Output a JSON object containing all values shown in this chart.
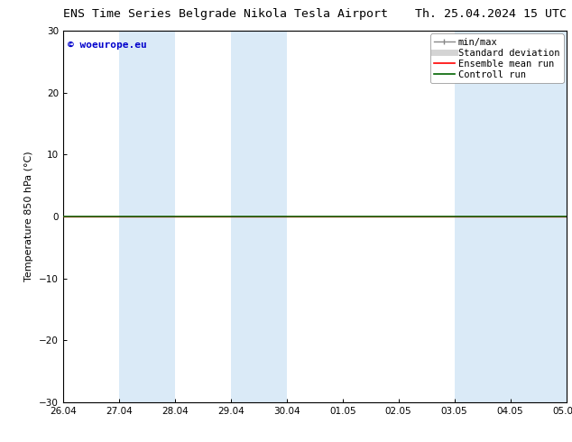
{
  "title_left": "ENS Time Series Belgrade Nikola Tesla Airport",
  "title_right": "Th. 25.04.2024 15 UTC",
  "ylabel": "Temperature 850 hPa (°C)",
  "xlabel_ticks": [
    "26.04",
    "27.04",
    "28.04",
    "29.04",
    "30.04",
    "01.05",
    "02.05",
    "03.05",
    "04.05",
    "05.05"
  ],
  "ylim": [
    -30,
    30
  ],
  "yticks": [
    -30,
    -20,
    -10,
    0,
    10,
    20,
    30
  ],
  "xlim": [
    0,
    9
  ],
  "watermark": "© woeurope.eu",
  "background_color": "#ffffff",
  "plot_bg_color": "#ffffff",
  "shaded_bands_x": [
    [
      1,
      2
    ],
    [
      3,
      4
    ],
    [
      7,
      8
    ],
    [
      8,
      9
    ]
  ],
  "shaded_color": "#daeaf7",
  "line_y_value": 0.0,
  "line_color_ensemble": "#ff0000",
  "line_color_control": "#006400",
  "legend_labels": [
    "min/max",
    "Standard deviation",
    "Ensemble mean run",
    "Controll run"
  ],
  "legend_line_colors": [
    "#888888",
    "#aaaaaa",
    "#ff0000",
    "#006400"
  ],
  "title_fontsize": 9.5,
  "tick_fontsize": 7.5,
  "ylabel_fontsize": 8,
  "legend_fontsize": 7.5,
  "watermark_color": "#0000cc",
  "watermark_fontsize": 8
}
